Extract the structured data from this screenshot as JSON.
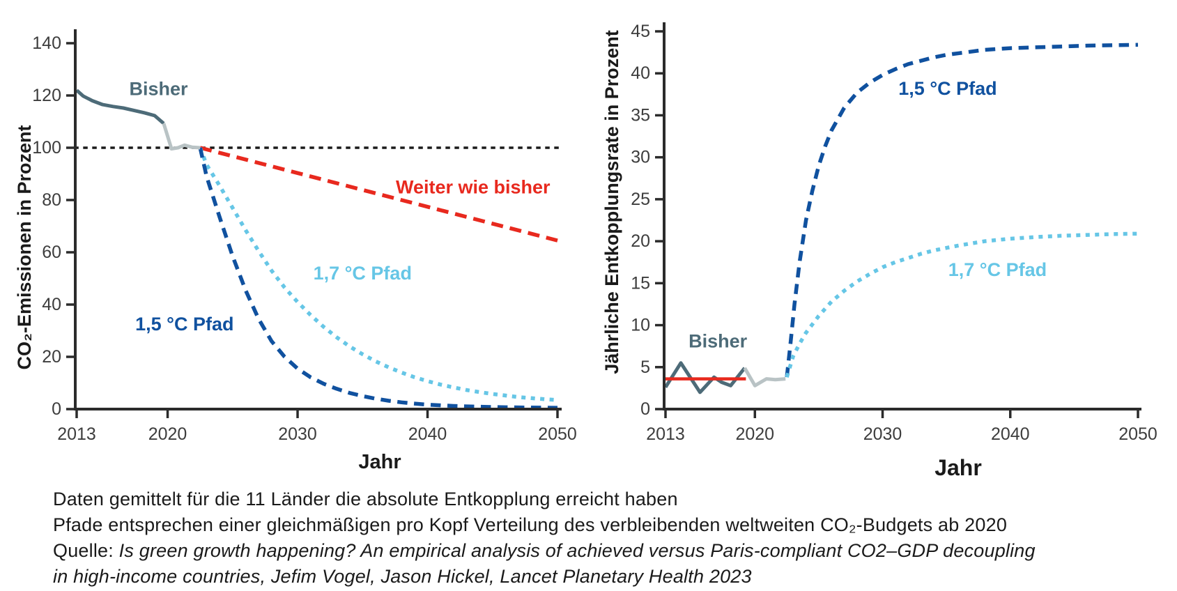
{
  "style": {
    "background": "#ffffff",
    "axis_color": "#2b2b2b",
    "tick_label_color": "#3d3d3d",
    "text_color": "#1a1a1a",
    "accent_dark_blue": "#10519f",
    "accent_light_blue": "#66c6e6",
    "accent_red": "#e8291e",
    "accent_slate": "#4d6b78",
    "accent_light_gray": "#b9c3c5"
  },
  "footer": {
    "line1": "Daten gemittelt für die 11 Länder die absolute Entkopplung erreicht haben",
    "line2": "Pfade entsprechen einer gleichmäßigen pro Kopf Verteilung des verbleibenden weltweiten CO₂-Budgets ab 2020",
    "source_prefix": "Quelle: ",
    "source_italic_line1": "Is green growth happening? An empirical analysis of achieved versus Paris-compliant CO2–GDP decoupling",
    "source_italic_line2": "in high-income countries, Jefim Vogel, Jason Hickel, Lancet Planetary Health 2023"
  },
  "chart_data": [
    {
      "id": "co2-emissionen",
      "type": "line",
      "title": "",
      "xlabel": "Jahr",
      "ylabel": "CO₂-Emissionen in Prozent",
      "xlim": [
        2013,
        2050
      ],
      "ylim": [
        0,
        140
      ],
      "xticks": [
        "2013",
        "2020",
        "2030",
        "2040",
        "2050"
      ],
      "xtick_values": [
        2013,
        2020,
        2030,
        2040,
        2050
      ],
      "yticks": [
        "0",
        "20",
        "40",
        "60",
        "80",
        "100",
        "120",
        "140"
      ],
      "ytick_values": [
        0,
        20,
        40,
        60,
        80,
        100,
        120,
        140
      ],
      "grid": false,
      "series": [
        {
          "name": "referenzlinie-100-prozent",
          "color": "#1a1a1a",
          "style": "dotted",
          "width": 3.5,
          "points": [
            [
              2012.8,
              100
            ],
            [
              2050.4,
              100
            ]
          ]
        },
        {
          "name": "weiter-wie-bisher",
          "color": "#e8291e",
          "style": "dashed",
          "dash": "17 10",
          "width": 5.5,
          "points": [
            [
              2022.5,
              100
            ],
            [
              2050,
              64.5
            ]
          ]
        },
        {
          "name": "pfad-1-7-grad",
          "color": "#66c6e6",
          "style": "dense-dotted",
          "width": 5.5,
          "points": [
            [
              2022.5,
              100
            ],
            [
              2023,
              93.5
            ],
            [
              2024,
              85.5
            ],
            [
              2025,
              77
            ],
            [
              2026,
              68.5
            ],
            [
              2027,
              60.5
            ],
            [
              2028,
              53
            ],
            [
              2029,
              46.5
            ],
            [
              2030,
              41
            ],
            [
              2031,
              36
            ],
            [
              2032,
              31.5
            ],
            [
              2033,
              27.5
            ],
            [
              2034,
              24
            ],
            [
              2035,
              21
            ],
            [
              2036,
              18.3
            ],
            [
              2037,
              16
            ],
            [
              2038,
              14
            ],
            [
              2039,
              12.2
            ],
            [
              2040,
              10.7
            ],
            [
              2041,
              9.4
            ],
            [
              2042,
              8.3
            ],
            [
              2043,
              7.3
            ],
            [
              2044,
              6.5
            ],
            [
              2045,
              5.8
            ],
            [
              2046,
              5.2
            ],
            [
              2047,
              4.6
            ],
            [
              2048,
              4.2
            ],
            [
              2049,
              3.8
            ],
            [
              2050,
              3.5
            ]
          ]
        },
        {
          "name": "pfad-1-5-grad",
          "color": "#10519f",
          "style": "dashed",
          "width": 5.5,
          "points": [
            [
              2022.5,
              100
            ],
            [
              2023,
              89
            ],
            [
              2024,
              73.5
            ],
            [
              2025,
              58.5
            ],
            [
              2026,
              45.5
            ],
            [
              2027,
              34.5
            ],
            [
              2028,
              26
            ],
            [
              2029,
              20
            ],
            [
              2030,
              15.5
            ],
            [
              2031,
              12.2
            ],
            [
              2032,
              9.7
            ],
            [
              2033,
              7.8
            ],
            [
              2034,
              6.2
            ],
            [
              2035,
              5
            ],
            [
              2036,
              4
            ],
            [
              2037,
              3.2
            ],
            [
              2038,
              2.6
            ],
            [
              2039,
              2.1
            ],
            [
              2040,
              1.7
            ],
            [
              2042,
              1.2
            ],
            [
              2044,
              0.9
            ],
            [
              2046,
              0.7
            ],
            [
              2048,
              0.6
            ],
            [
              2050,
              0.5
            ]
          ]
        },
        {
          "name": "bisher-beobachtet",
          "color": "#4d6b78",
          "style": "solid",
          "width": 5,
          "points": [
            [
              2013,
              122
            ],
            [
              2013.5,
              119.8
            ],
            [
              2014.2,
              118
            ],
            [
              2015,
              116.5
            ],
            [
              2015.8,
              115.8
            ],
            [
              2016.6,
              115.2
            ],
            [
              2017.4,
              114.3
            ],
            [
              2018.2,
              113.4
            ],
            [
              2019,
              112.3
            ],
            [
              2019.7,
              109.3
            ]
          ]
        },
        {
          "name": "bisher-juengste-daten",
          "color": "#b9c3c5",
          "style": "solid",
          "width": 5,
          "points": [
            [
              2019.7,
              109.3
            ],
            [
              2020.3,
              99.6
            ],
            [
              2020.8,
              100
            ],
            [
              2021.3,
              101
            ],
            [
              2021.9,
              100.2
            ],
            [
              2022.5,
              100
            ]
          ]
        }
      ],
      "annotations": [
        {
          "text": "Bisher",
          "color": "#4d6b78",
          "x": 2019.3,
          "y": 122.5
        },
        {
          "text": "Weiter wie bisher",
          "color": "#e8291e",
          "x": 2043.5,
          "y": 85
        },
        {
          "text": "1,7 °C Pfad",
          "color": "#66c6e6",
          "x": 2035,
          "y": 52
        },
        {
          "text": "1,5 °C Pfad",
          "color": "#10519f",
          "x": 2021.3,
          "y": 32.5
        }
      ]
    },
    {
      "id": "entkopplungsrate",
      "type": "line",
      "title": "",
      "xlabel": "Jahr",
      "ylabel": "Jährliche Entkopplungsrate in Prozent",
      "xlim": [
        2013,
        2050
      ],
      "ylim": [
        0,
        45
      ],
      "xticks": [
        "2013",
        "2020",
        "2030",
        "2040",
        "2050"
      ],
      "xtick_values": [
        2013,
        2020,
        2030,
        2040,
        2050
      ],
      "yticks": [
        "0",
        "5",
        "10",
        "15",
        "20",
        "25",
        "30",
        "35",
        "40",
        "45"
      ],
      "ytick_values": [
        0,
        5,
        10,
        15,
        20,
        25,
        30,
        35,
        40,
        45
      ],
      "grid": false,
      "series": [
        {
          "name": "pfad-1-5-grad",
          "color": "#10519f",
          "style": "dashed",
          "width": 5.5,
          "points": [
            [
              2022.5,
              3.8
            ],
            [
              2022.8,
              8
            ],
            [
              2023.1,
              12.5
            ],
            [
              2023.5,
              17.5
            ],
            [
              2024,
              22.5
            ],
            [
              2024.5,
              26
            ],
            [
              2025,
              29
            ],
            [
              2025.5,
              31.3
            ],
            [
              2026,
              33.2
            ],
            [
              2027,
              35.9
            ],
            [
              2028,
              37.7
            ],
            [
              2029,
              38.9
            ],
            [
              2030,
              39.8
            ],
            [
              2031,
              40.5
            ],
            [
              2032,
              41.1
            ],
            [
              2033,
              41.5
            ],
            [
              2034,
              41.9
            ],
            [
              2035,
              42.2
            ],
            [
              2036,
              42.4
            ],
            [
              2038,
              42.8
            ],
            [
              2040,
              43
            ],
            [
              2042,
              43.1
            ],
            [
              2044,
              43.2
            ],
            [
              2046,
              43.3
            ],
            [
              2048,
              43.35
            ],
            [
              2050,
              43.4
            ]
          ]
        },
        {
          "name": "pfad-1-7-grad",
          "color": "#66c6e6",
          "style": "dense-dotted",
          "width": 5.5,
          "points": [
            [
              2022.5,
              3.8
            ],
            [
              2023,
              6.3
            ],
            [
              2023.5,
              7.8
            ],
            [
              2024,
              9.1
            ],
            [
              2025,
              11.1
            ],
            [
              2026,
              12.8
            ],
            [
              2027,
              14.1
            ],
            [
              2028,
              15.2
            ],
            [
              2029,
              16.1
            ],
            [
              2030,
              16.9
            ],
            [
              2031,
              17.5
            ],
            [
              2032,
              18
            ],
            [
              2033,
              18.5
            ],
            [
              2034,
              18.9
            ],
            [
              2035,
              19.2
            ],
            [
              2036,
              19.5
            ],
            [
              2038,
              20
            ],
            [
              2040,
              20.3
            ],
            [
              2042,
              20.5
            ],
            [
              2044,
              20.65
            ],
            [
              2046,
              20.75
            ],
            [
              2048,
              20.85
            ],
            [
              2050,
              20.9
            ]
          ]
        },
        {
          "name": "bisher-beobachtet",
          "color": "#4d6b78",
          "style": "solid",
          "width": 5,
          "points": [
            [
              2013,
              2.6
            ],
            [
              2014.2,
              5.5
            ],
            [
              2015.7,
              2
            ],
            [
              2016.8,
              3.8
            ],
            [
              2017.4,
              3.2
            ],
            [
              2018.1,
              2.8
            ],
            [
              2019.2,
              4.9
            ]
          ]
        },
        {
          "name": "bisher-juengste-daten",
          "color": "#b9c3c5",
          "style": "solid",
          "width": 5,
          "points": [
            [
              2019.2,
              4.9
            ],
            [
              2020,
              2.8
            ],
            [
              2020.9,
              3.6
            ],
            [
              2021.6,
              3.5
            ],
            [
              2022.4,
              3.6
            ]
          ]
        },
        {
          "name": "bisher-mittelwert",
          "color": "#e8291e",
          "style": "solid",
          "width": 4.5,
          "points": [
            [
              2013,
              3.6
            ],
            [
              2019.3,
              3.6
            ]
          ]
        }
      ],
      "annotations": [
        {
          "text": "Bisher",
          "color": "#4d6b78",
          "x": 2017.1,
          "y": 8.1
        },
        {
          "text": "1,5 °C Pfad",
          "color": "#10519f",
          "x": 2035.1,
          "y": 38.2
        },
        {
          "text": "1,7 °C Pfad",
          "color": "#66c6e6",
          "x": 2039,
          "y": 16.6
        }
      ]
    }
  ]
}
